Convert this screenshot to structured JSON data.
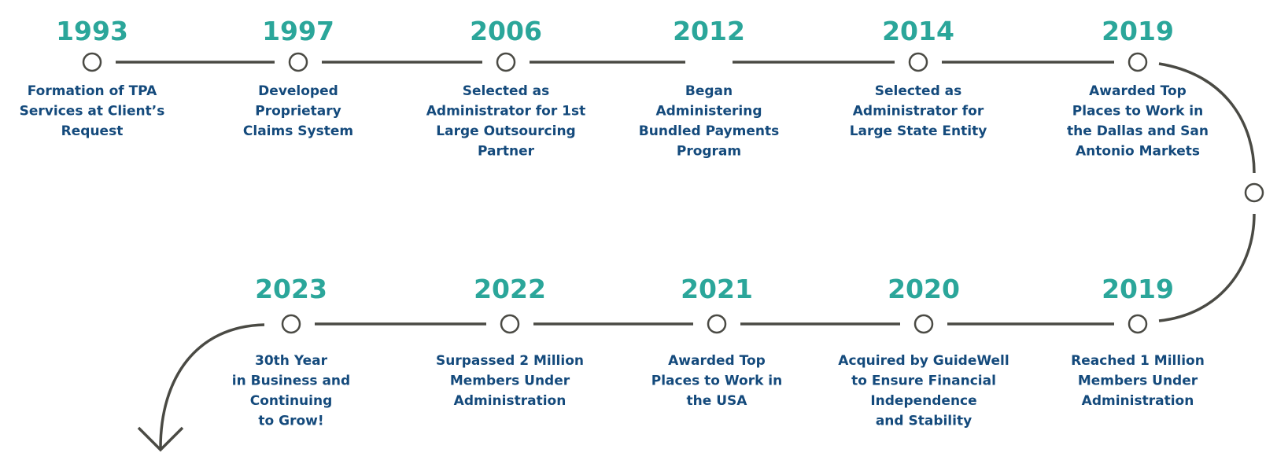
{
  "nodes": [
    {
      "year": "1993",
      "lines": [
        "Formation of TPA",
        "Services at Client’s",
        "Request"
      ]
    },
    {
      "year": "1997",
      "lines": [
        "Developed",
        "Proprietary",
        "Claims System"
      ]
    },
    {
      "year": "2006",
      "lines": [
        "Selected as",
        "Administrator for 1st",
        "Large Outsourcing",
        "Partner"
      ]
    },
    {
      "year": "2012",
      "lines": [
        "Began",
        "Administering",
        "Bundled Payments",
        "Program"
      ]
    },
    {
      "year": "2014",
      "lines": [
        "Selected as",
        "Administrator for",
        "Large State Entity"
      ]
    },
    {
      "year": "2019",
      "lines": [
        "Awarded Top",
        "Places to Work in",
        "the Dallas and San",
        "Antonio Markets"
      ]
    },
    {
      "year": "2019",
      "lines": [
        "Reached 1 Million",
        "Members Under",
        "Administration"
      ]
    },
    {
      "year": "2020",
      "lines": [
        "Acquired by GuideWell",
        "to Ensure Financial",
        "Independence",
        "and Stability"
      ]
    },
    {
      "year": "2021",
      "lines": [
        "Awarded Top",
        "Places to Work in",
        "the USA"
      ]
    },
    {
      "year": "2022",
      "lines": [
        "Surpassed 2 Million",
        "Members Under",
        "Administration"
      ]
    },
    {
      "year": "2023",
      "lines": [
        "30th Year",
        "in Business and",
        "Continuing",
        "to Grow!"
      ]
    }
  ]
}
